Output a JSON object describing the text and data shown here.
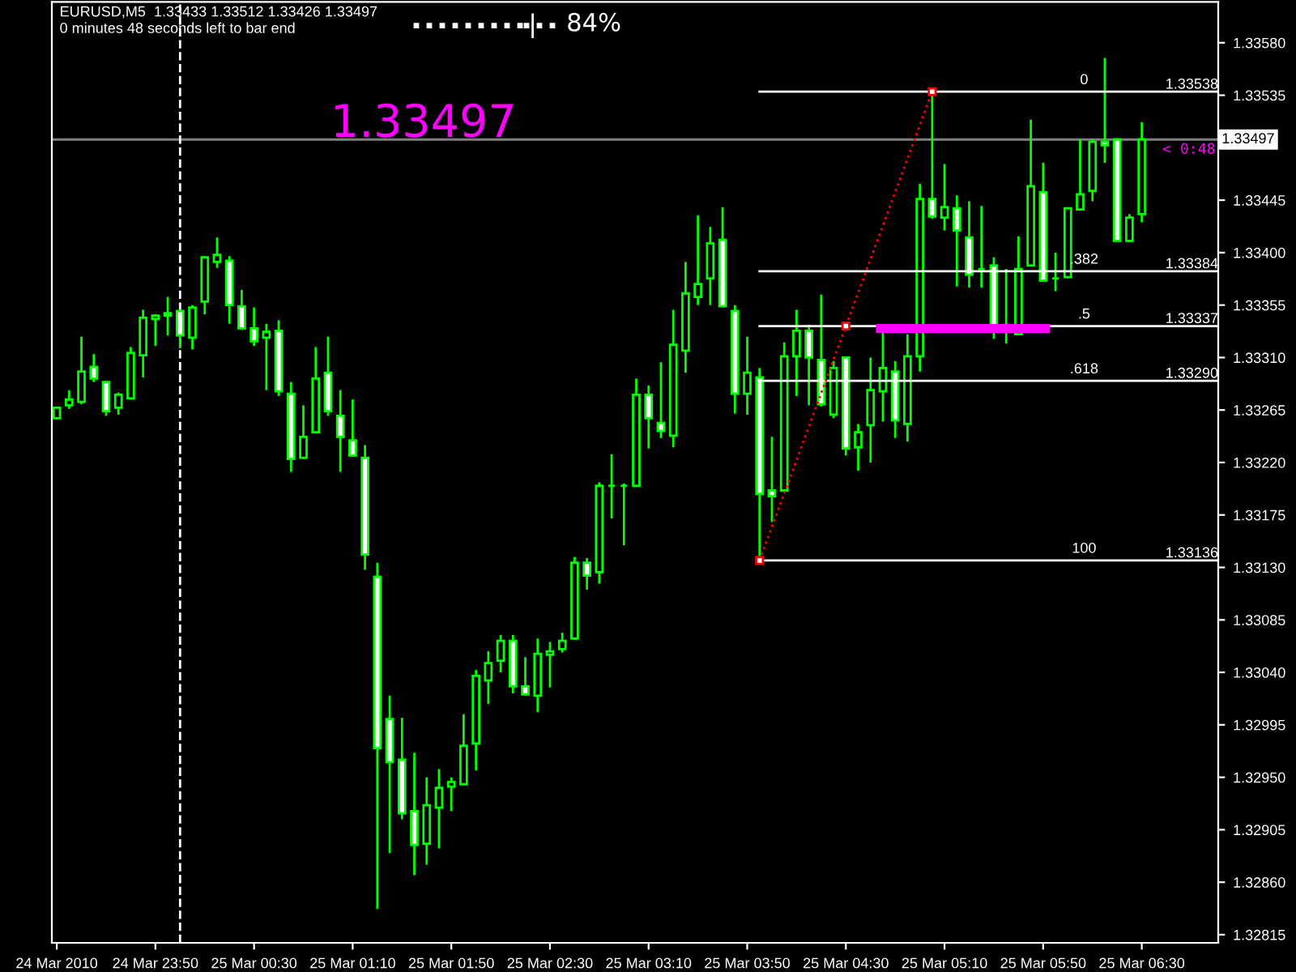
{
  "chart_data": {
    "type": "candlestick",
    "title": "EURUSD,M5  1.33433 1.33512 1.33426 1.33497",
    "subtitle": "0 minutes 48 seconds left to bar end",
    "color": "#00ff00",
    "x": [
      "2010-03-24T23:10",
      "2010-03-24T23:15",
      "2010-03-24T23:20",
      "2010-03-24T23:25",
      "2010-03-24T23:30",
      "2010-03-24T23:35",
      "2010-03-24T23:40",
      "2010-03-24T23:45",
      "2010-03-24T23:50",
      "2010-03-24T23:55",
      "2010-03-25T00:00",
      "2010-03-25T00:05",
      "2010-03-25T00:10",
      "2010-03-25T00:15",
      "2010-03-25T00:20",
      "2010-03-25T00:25",
      "2010-03-25T00:30",
      "2010-03-25T00:35",
      "2010-03-25T00:40",
      "2010-03-25T00:45",
      "2010-03-25T00:50",
      "2010-03-25T00:55",
      "2010-03-25T01:00",
      "2010-03-25T01:05",
      "2010-03-25T01:10",
      "2010-03-25T01:15",
      "2010-03-25T01:20",
      "2010-03-25T01:25",
      "2010-03-25T01:30",
      "2010-03-25T01:35",
      "2010-03-25T01:40",
      "2010-03-25T01:45",
      "2010-03-25T01:50",
      "2010-03-25T01:55",
      "2010-03-25T02:00",
      "2010-03-25T02:05",
      "2010-03-25T02:10",
      "2010-03-25T02:15",
      "2010-03-25T02:20",
      "2010-03-25T02:25",
      "2010-03-25T02:30",
      "2010-03-25T02:35",
      "2010-03-25T02:40",
      "2010-03-25T02:45",
      "2010-03-25T02:50",
      "2010-03-25T02:55",
      "2010-03-25T03:00",
      "2010-03-25T03:05",
      "2010-03-25T03:10",
      "2010-03-25T03:15",
      "2010-03-25T03:20",
      "2010-03-25T03:25",
      "2010-03-25T03:30",
      "2010-03-25T03:35",
      "2010-03-25T03:40",
      "2010-03-25T03:45",
      "2010-03-25T03:50",
      "2010-03-25T03:55",
      "2010-03-25T04:00",
      "2010-03-25T04:05",
      "2010-03-25T04:10",
      "2010-03-25T04:15",
      "2010-03-25T04:20",
      "2010-03-25T04:25",
      "2010-03-25T04:30",
      "2010-03-25T04:35",
      "2010-03-25T04:40",
      "2010-03-25T04:45",
      "2010-03-25T04:50",
      "2010-03-25T04:55",
      "2010-03-25T05:00",
      "2010-03-25T05:05",
      "2010-03-25T05:10",
      "2010-03-25T05:15",
      "2010-03-25T05:20",
      "2010-03-25T05:25",
      "2010-03-25T05:30",
      "2010-03-25T05:35",
      "2010-03-25T05:40",
      "2010-03-25T05:45",
      "2010-03-25T05:50",
      "2010-03-25T05:55",
      "2010-03-25T06:00",
      "2010-03-25T06:05",
      "2010-03-25T06:10",
      "2010-03-25T06:15",
      "2010-03-25T06:20",
      "2010-03-25T06:25",
      "2010-03-25T06:30"
    ],
    "ohlc": [
      [
        1.33258,
        1.33268,
        1.33257,
        1.33267
      ],
      [
        1.33269,
        1.33282,
        1.33266,
        1.33274
      ],
      [
        1.33272,
        1.33328,
        1.3327,
        1.33298
      ],
      [
        1.33302,
        1.33313,
        1.33289,
        1.33292
      ],
      [
        1.33289,
        1.3329,
        1.3326,
        1.33264
      ],
      [
        1.33267,
        1.3328,
        1.33261,
        1.33278
      ],
      [
        1.33275,
        1.33319,
        1.33274,
        1.33314
      ],
      [
        1.33312,
        1.33351,
        1.33293,
        1.33344
      ],
      [
        1.33343,
        1.33347,
        1.3332,
        1.33346
      ],
      [
        1.33348,
        1.33362,
        1.33329,
        1.33346
      ],
      [
        1.3335,
        1.33351,
        1.33318,
        1.33329
      ],
      [
        1.33327,
        1.33355,
        1.33317,
        1.33353
      ],
      [
        1.33358,
        1.33397,
        1.33347,
        1.33396
      ],
      [
        1.33392,
        1.33413,
        1.33387,
        1.33398
      ],
      [
        1.33393,
        1.33397,
        1.33339,
        1.33355
      ],
      [
        1.33354,
        1.33368,
        1.33334,
        1.33335
      ],
      [
        1.33335,
        1.33353,
        1.3332,
        1.33324
      ],
      [
        1.33327,
        1.33339,
        1.33282,
        1.33332
      ],
      [
        1.33333,
        1.33342,
        1.33277,
        1.33281
      ],
      [
        1.33279,
        1.33289,
        1.33212,
        1.33223
      ],
      [
        1.33224,
        1.33269,
        1.33223,
        1.33242
      ],
      [
        1.33246,
        1.33319,
        1.33245,
        1.33292
      ],
      [
        1.33297,
        1.33328,
        1.3326,
        1.33264
      ],
      [
        1.3326,
        1.33282,
        1.33212,
        1.33242
      ],
      [
        1.33239,
        1.33274,
        1.33225,
        1.33226
      ],
      [
        1.33224,
        1.33235,
        1.33128,
        1.33141
      ],
      [
        1.33122,
        1.33134,
        1.32837,
        1.32975
      ],
      [
        1.33,
        1.3302,
        1.32885,
        1.32963
      ],
      [
        1.32965,
        1.33001,
        1.32914,
        1.32919
      ],
      [
        1.32921,
        1.32971,
        1.32866,
        1.32892
      ],
      [
        1.32893,
        1.3295,
        1.32875,
        1.32926
      ],
      [
        1.32924,
        1.32957,
        1.32889,
        1.32941
      ],
      [
        1.32942,
        1.3295,
        1.32921,
        1.32946
      ],
      [
        1.32944,
        1.33004,
        1.32944,
        1.32977
      ],
      [
        1.32979,
        1.33042,
        1.32956,
        1.33037
      ],
      [
        1.33033,
        1.33058,
        1.33013,
        1.33048
      ],
      [
        1.3305,
        1.33072,
        1.3304,
        1.33067
      ],
      [
        1.33067,
        1.33072,
        1.33022,
        1.33028
      ],
      [
        1.33028,
        1.33053,
        1.3302,
        1.33021
      ],
      [
        1.3302,
        1.33069,
        1.33006,
        1.33056
      ],
      [
        1.33055,
        1.33066,
        1.33027,
        1.33058
      ],
      [
        1.3306,
        1.33074,
        1.33057,
        1.33067
      ],
      [
        1.33069,
        1.33139,
        1.33068,
        1.33134
      ],
      [
        1.33134,
        1.33138,
        1.33111,
        1.33123
      ],
      [
        1.33126,
        1.33203,
        1.33116,
        1.332
      ],
      [
        1.332,
        1.33227,
        1.33172,
        1.332
      ],
      [
        1.332,
        1.33202,
        1.33149,
        1.332
      ],
      [
        1.332,
        1.33292,
        1.332,
        1.33278
      ],
      [
        1.33278,
        1.33286,
        1.33232,
        1.33258
      ],
      [
        1.33254,
        1.33306,
        1.33241,
        1.33247
      ],
      [
        1.33243,
        1.33351,
        1.33233,
        1.33321
      ],
      [
        1.33316,
        1.33392,
        1.33297,
        1.33365
      ],
      [
        1.33362,
        1.33432,
        1.33355,
        1.33373
      ],
      [
        1.33378,
        1.33422,
        1.33355,
        1.33408
      ],
      [
        1.33411,
        1.33439,
        1.33354,
        1.33354
      ],
      [
        1.3335,
        1.33355,
        1.33262,
        1.33279
      ],
      [
        1.33279,
        1.33328,
        1.33261,
        1.33297
      ],
      [
        1.33293,
        1.33301,
        1.33136,
        1.33193
      ],
      [
        1.33196,
        1.33242,
        1.33169,
        1.33191
      ],
      [
        1.33196,
        1.33323,
        1.33196,
        1.33311
      ],
      [
        1.33311,
        1.33351,
        1.33277,
        1.33333
      ],
      [
        1.33333,
        1.33338,
        1.33269,
        1.3331
      ],
      [
        1.33308,
        1.33364,
        1.33268,
        1.3327
      ],
      [
        1.33261,
        1.33307,
        1.33258,
        1.33301
      ],
      [
        1.3331,
        1.33311,
        1.33226,
        1.33232
      ],
      [
        1.33233,
        1.33253,
        1.33213,
        1.33246
      ],
      [
        1.33252,
        1.3331,
        1.3322,
        1.33282
      ],
      [
        1.33281,
        1.33335,
        1.33255,
        1.33301
      ],
      [
        1.33298,
        1.33307,
        1.33241,
        1.33256
      ],
      [
        1.33253,
        1.3333,
        1.33238,
        1.33311
      ],
      [
        1.33311,
        1.33459,
        1.33298,
        1.33446
      ],
      [
        1.33446,
        1.33538,
        1.33429,
        1.33431
      ],
      [
        1.3343,
        1.33476,
        1.33419,
        1.33439
      ],
      [
        1.33438,
        1.33449,
        1.33371,
        1.33419
      ],
      [
        1.33413,
        1.33444,
        1.3337,
        1.33381
      ],
      [
        1.33386,
        1.3344,
        1.3337,
        1.33386
      ],
      [
        1.33389,
        1.33396,
        1.33326,
        1.33338
      ],
      [
        1.33338,
        1.33386,
        1.33322,
        1.33333
      ],
      [
        1.3333,
        1.33414,
        1.33329,
        1.33386
      ],
      [
        1.33389,
        1.33514,
        1.33389,
        1.33457
      ],
      [
        1.33452,
        1.33477,
        1.33375,
        1.33376
      ],
      [
        1.33378,
        1.334,
        1.33367,
        1.33378
      ],
      [
        1.33379,
        1.33438,
        1.33378,
        1.33438
      ],
      [
        1.33437,
        1.33497,
        1.33436,
        1.3345
      ],
      [
        1.33453,
        1.33497,
        1.33444,
        1.33495
      ],
      [
        1.33495,
        1.33567,
        1.33477,
        1.33492
      ],
      [
        1.33497,
        1.33498,
        1.3341,
        1.3341
      ],
      [
        1.3341,
        1.33433,
        1.33409,
        1.3343
      ],
      [
        1.33433,
        1.33512,
        1.33426,
        1.33497
      ]
    ],
    "xlim": [
      "2010-03-24T23:08",
      "2010-03-25T07:01"
    ],
    "ylim": [
      1.32808,
      1.33615
    ],
    "xticks": [
      {
        "value": "2010-03-24T23:10",
        "label": "24 Mar 2010"
      },
      {
        "value": "2010-03-24T23:50",
        "label": "24 Mar 23:50"
      },
      {
        "value": "2010-03-25T00:30",
        "label": "25 Mar 00:30"
      },
      {
        "value": "2010-03-25T01:10",
        "label": "25 Mar 01:10"
      },
      {
        "value": "2010-03-25T01:50",
        "label": "25 Mar 01:50"
      },
      {
        "value": "2010-03-25T02:30",
        "label": "25 Mar 02:30"
      },
      {
        "value": "2010-03-25T03:10",
        "label": "25 Mar 03:10"
      },
      {
        "value": "2010-03-25T03:50",
        "label": "25 Mar 03:50"
      },
      {
        "value": "2010-03-25T04:30",
        "label": "25 Mar 04:30"
      },
      {
        "value": "2010-03-25T05:10",
        "label": "25 Mar 05:10"
      },
      {
        "value": "2010-03-25T05:50",
        "label": "25 Mar 05:50"
      },
      {
        "value": "2010-03-25T06:30",
        "label": "25 Mar 06:30"
      }
    ],
    "yticks": [
      {
        "value": 1.3358,
        "label": "1.33580"
      },
      {
        "value": 1.33535,
        "label": "1.33535"
      },
      {
        "value": 1.3349,
        "label": null
      },
      {
        "value": 1.33445,
        "label": "1.33445"
      },
      {
        "value": 1.334,
        "label": "1.33400"
      },
      {
        "value": 1.33355,
        "label": "1.33355"
      },
      {
        "value": 1.3331,
        "label": "1.33310"
      },
      {
        "value": 1.33265,
        "label": "1.33265"
      },
      {
        "value": 1.3322,
        "label": "1.33220"
      },
      {
        "value": 1.33175,
        "label": "1.33175"
      },
      {
        "value": 1.3313,
        "label": "1.33130"
      },
      {
        "value": 1.33085,
        "label": "1.33085"
      },
      {
        "value": 1.3304,
        "label": "1.33040"
      },
      {
        "value": 1.32995,
        "label": "1.32995"
      },
      {
        "value": 1.3295,
        "label": "1.32950"
      },
      {
        "value": 1.32905,
        "label": "1.32905"
      },
      {
        "value": 1.3286,
        "label": "1.32860"
      },
      {
        "value": 1.32815,
        "label": "1.32815"
      }
    ],
    "grid": false,
    "ref_lines": [
      {
        "axis": "y",
        "value": 1.33497,
        "label": "1.33497",
        "color": "#808080"
      },
      {
        "axis": "x",
        "value": "2010-03-25T00:00",
        "color": "#ffffff",
        "line_style": "dashed"
      }
    ],
    "series": [
      {
        "type": "line",
        "name": "0",
        "color": "#ffffff",
        "x": [
          "2010-03-25T03:55",
          "2010-03-25T07:01"
        ],
        "values": [
          1.33538,
          1.33538
        ],
        "value_labels": [
          null,
          "1.33538"
        ]
      },
      {
        "type": "line",
        "name": ".382",
        "color": "#ffffff",
        "x": [
          "2010-03-25T03:55",
          "2010-03-25T07:01"
        ],
        "values": [
          1.33384,
          1.33384
        ],
        "value_labels": [
          null,
          "1.33384"
        ]
      },
      {
        "type": "line",
        "name": ".5",
        "color": "#ffffff",
        "x": [
          "2010-03-25T03:55",
          "2010-03-25T07:01"
        ],
        "values": [
          1.33337,
          1.33337
        ],
        "value_labels": [
          null,
          "1.33337"
        ]
      },
      {
        "type": "line",
        "name": ".618",
        "color": "#ffffff",
        "x": [
          "2010-03-25T03:55",
          "2010-03-25T07:01"
        ],
        "values": [
          1.3329,
          1.3329
        ],
        "value_labels": [
          null,
          "1.33290"
        ]
      },
      {
        "type": "line",
        "name": "100",
        "color": "#ffffff",
        "x": [
          "2010-03-25T03:55",
          "2010-03-25T07:01"
        ],
        "values": [
          1.33136,
          1.33136
        ],
        "value_labels": [
          null,
          "1.33136"
        ]
      },
      {
        "type": "line",
        "color": "#ff0000",
        "line_style": "dotted",
        "marker": "square",
        "x": [
          "2010-03-25T03:55",
          "2010-03-25T04:30",
          "2010-03-25T05:05"
        ],
        "values": [
          1.33136,
          1.33337,
          1.33538
        ]
      },
      {
        "type": "line",
        "color": "#ff00ff",
        "x": [
          "2010-03-25T04:44",
          "2010-03-25T05:51"
        ],
        "values": [
          1.33335,
          1.33335
        ]
      }
    ],
    "annotations": [
      "1.33497",
      "< 0:48",
      "84%"
    ]
  }
}
